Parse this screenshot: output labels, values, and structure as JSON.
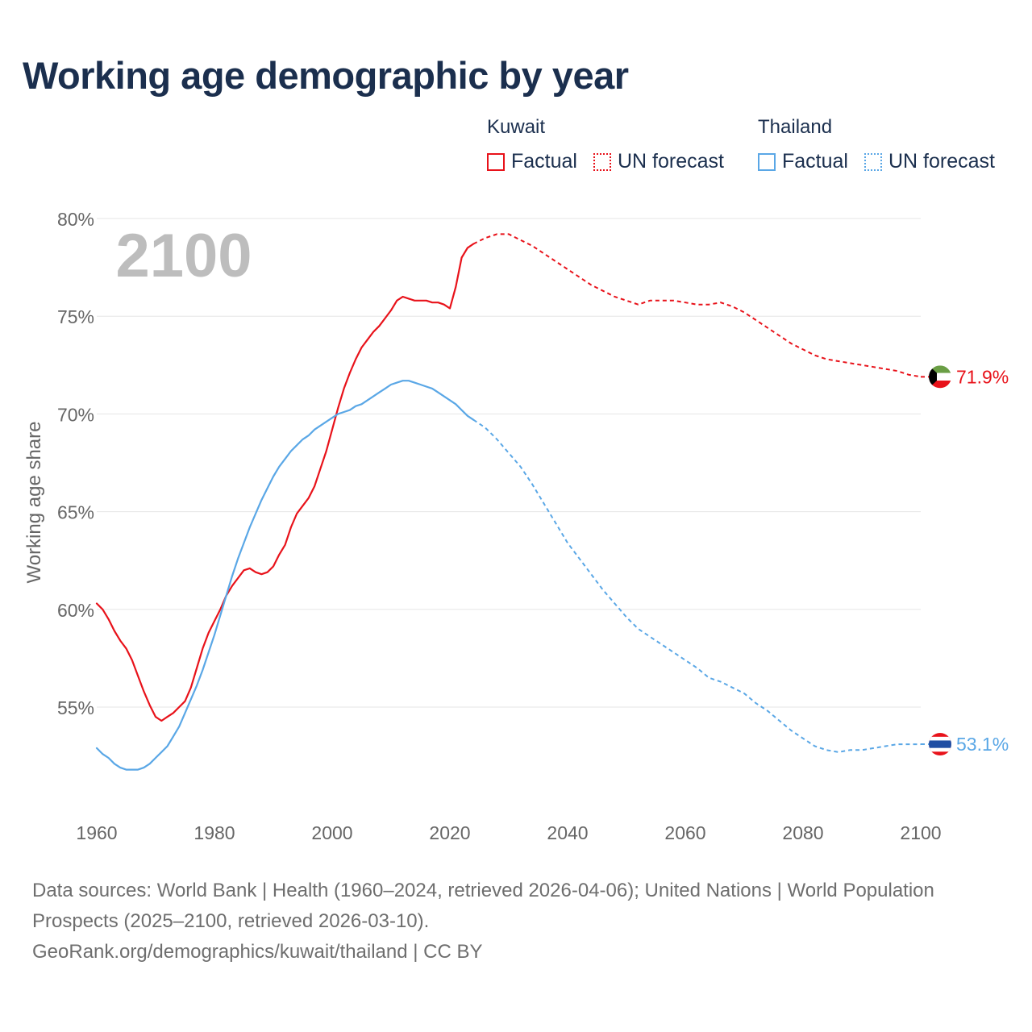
{
  "title": "Working age demographic by year",
  "legend": {
    "kuwait": {
      "name": "Kuwait",
      "factual": "Factual",
      "forecast": "UN forecast",
      "color": "#e8121a"
    },
    "thailand": {
      "name": "Thailand",
      "factual": "Factual",
      "forecast": "UN forecast",
      "color": "#5aa7e6"
    }
  },
  "year_label": "2100",
  "footer": {
    "line1": "Data sources: World Bank | Health (1960–2024, retrieved 2026-04-06); United Nations | World Population Prospects (2025–2100, retrieved 2026-03-10).",
    "line2": "GeoRank.org/demographics/kuwait/thailand | CC BY"
  },
  "chart_data": {
    "type": "line",
    "title": "Working age demographic by year",
    "xlabel": "",
    "ylabel": "Working age share",
    "xlim": [
      1960,
      2103
    ],
    "ylim": [
      50.5,
      80
    ],
    "x_ticks": [
      1960,
      1980,
      2000,
      2020,
      2040,
      2060,
      2080,
      2100
    ],
    "y_ticks": [
      55,
      60,
      65,
      70,
      75,
      80
    ],
    "y_tick_labels": [
      "55%",
      "60%",
      "65%",
      "70%",
      "75%",
      "80%"
    ],
    "forecast_start_year": 2024,
    "series": [
      {
        "name": "Kuwait",
        "color": "#e8121a",
        "end_label": "71.9%",
        "points": [
          [
            1960,
            60.3
          ],
          [
            1961,
            60.0
          ],
          [
            1962,
            59.5
          ],
          [
            1963,
            58.9
          ],
          [
            1964,
            58.4
          ],
          [
            1965,
            58.0
          ],
          [
            1966,
            57.4
          ],
          [
            1967,
            56.6
          ],
          [
            1968,
            55.8
          ],
          [
            1969,
            55.1
          ],
          [
            1970,
            54.5
          ],
          [
            1971,
            54.3
          ],
          [
            1972,
            54.5
          ],
          [
            1973,
            54.7
          ],
          [
            1974,
            55.0
          ],
          [
            1975,
            55.3
          ],
          [
            1976,
            56.0
          ],
          [
            1977,
            57.0
          ],
          [
            1978,
            58.0
          ],
          [
            1979,
            58.8
          ],
          [
            1980,
            59.4
          ],
          [
            1981,
            60.0
          ],
          [
            1982,
            60.7
          ],
          [
            1983,
            61.2
          ],
          [
            1984,
            61.6
          ],
          [
            1985,
            62.0
          ],
          [
            1986,
            62.1
          ],
          [
            1987,
            61.9
          ],
          [
            1988,
            61.8
          ],
          [
            1989,
            61.9
          ],
          [
            1990,
            62.2
          ],
          [
            1991,
            62.8
          ],
          [
            1992,
            63.3
          ],
          [
            1993,
            64.2
          ],
          [
            1994,
            64.9
          ],
          [
            1995,
            65.3
          ],
          [
            1996,
            65.7
          ],
          [
            1997,
            66.3
          ],
          [
            1998,
            67.2
          ],
          [
            1999,
            68.1
          ],
          [
            2000,
            69.2
          ],
          [
            2001,
            70.3
          ],
          [
            2002,
            71.3
          ],
          [
            2003,
            72.1
          ],
          [
            2004,
            72.8
          ],
          [
            2005,
            73.4
          ],
          [
            2006,
            73.8
          ],
          [
            2007,
            74.2
          ],
          [
            2008,
            74.5
          ],
          [
            2009,
            74.9
          ],
          [
            2010,
            75.3
          ],
          [
            2011,
            75.8
          ],
          [
            2012,
            76.0
          ],
          [
            2013,
            75.9
          ],
          [
            2014,
            75.8
          ],
          [
            2015,
            75.8
          ],
          [
            2016,
            75.8
          ],
          [
            2017,
            75.7
          ],
          [
            2018,
            75.7
          ],
          [
            2019,
            75.6
          ],
          [
            2020,
            75.4
          ],
          [
            2021,
            76.5
          ],
          [
            2022,
            78.0
          ],
          [
            2023,
            78.5
          ],
          [
            2024,
            78.7
          ],
          [
            2026,
            79.0
          ],
          [
            2028,
            79.2
          ],
          [
            2030,
            79.2
          ],
          [
            2032,
            78.9
          ],
          [
            2034,
            78.6
          ],
          [
            2036,
            78.2
          ],
          [
            2038,
            77.8
          ],
          [
            2040,
            77.4
          ],
          [
            2042,
            77.0
          ],
          [
            2044,
            76.6
          ],
          [
            2046,
            76.3
          ],
          [
            2048,
            76.0
          ],
          [
            2050,
            75.8
          ],
          [
            2052,
            75.6
          ],
          [
            2054,
            75.8
          ],
          [
            2056,
            75.8
          ],
          [
            2058,
            75.8
          ],
          [
            2060,
            75.7
          ],
          [
            2062,
            75.6
          ],
          [
            2064,
            75.6
          ],
          [
            2066,
            75.7
          ],
          [
            2068,
            75.5
          ],
          [
            2070,
            75.2
          ],
          [
            2072,
            74.8
          ],
          [
            2074,
            74.4
          ],
          [
            2076,
            74.0
          ],
          [
            2078,
            73.6
          ],
          [
            2080,
            73.3
          ],
          [
            2082,
            73.0
          ],
          [
            2084,
            72.8
          ],
          [
            2086,
            72.7
          ],
          [
            2088,
            72.6
          ],
          [
            2090,
            72.5
          ],
          [
            2092,
            72.4
          ],
          [
            2094,
            72.3
          ],
          [
            2096,
            72.2
          ],
          [
            2098,
            72.0
          ],
          [
            2100,
            71.9
          ]
        ]
      },
      {
        "name": "Thailand",
        "color": "#5aa7e6",
        "end_label": "53.1%",
        "points": [
          [
            1960,
            52.9
          ],
          [
            1961,
            52.6
          ],
          [
            1962,
            52.4
          ],
          [
            1963,
            52.1
          ],
          [
            1964,
            51.9
          ],
          [
            1965,
            51.8
          ],
          [
            1966,
            51.8
          ],
          [
            1967,
            51.8
          ],
          [
            1968,
            51.9
          ],
          [
            1969,
            52.1
          ],
          [
            1970,
            52.4
          ],
          [
            1971,
            52.7
          ],
          [
            1972,
            53.0
          ],
          [
            1973,
            53.5
          ],
          [
            1974,
            54.0
          ],
          [
            1975,
            54.7
          ],
          [
            1976,
            55.4
          ],
          [
            1977,
            56.1
          ],
          [
            1978,
            56.9
          ],
          [
            1979,
            57.8
          ],
          [
            1980,
            58.7
          ],
          [
            1981,
            59.7
          ],
          [
            1982,
            60.7
          ],
          [
            1983,
            61.7
          ],
          [
            1984,
            62.6
          ],
          [
            1985,
            63.4
          ],
          [
            1986,
            64.2
          ],
          [
            1987,
            64.9
          ],
          [
            1988,
            65.6
          ],
          [
            1989,
            66.2
          ],
          [
            1990,
            66.8
          ],
          [
            1991,
            67.3
          ],
          [
            1992,
            67.7
          ],
          [
            1993,
            68.1
          ],
          [
            1994,
            68.4
          ],
          [
            1995,
            68.7
          ],
          [
            1996,
            68.9
          ],
          [
            1997,
            69.2
          ],
          [
            1998,
            69.4
          ],
          [
            1999,
            69.6
          ],
          [
            2000,
            69.8
          ],
          [
            2001,
            70.0
          ],
          [
            2002,
            70.1
          ],
          [
            2003,
            70.2
          ],
          [
            2004,
            70.4
          ],
          [
            2005,
            70.5
          ],
          [
            2006,
            70.7
          ],
          [
            2007,
            70.9
          ],
          [
            2008,
            71.1
          ],
          [
            2009,
            71.3
          ],
          [
            2010,
            71.5
          ],
          [
            2011,
            71.6
          ],
          [
            2012,
            71.7
          ],
          [
            2013,
            71.7
          ],
          [
            2014,
            71.6
          ],
          [
            2015,
            71.5
          ],
          [
            2016,
            71.4
          ],
          [
            2017,
            71.3
          ],
          [
            2018,
            71.1
          ],
          [
            2019,
            70.9
          ],
          [
            2020,
            70.7
          ],
          [
            2021,
            70.5
          ],
          [
            2022,
            70.2
          ],
          [
            2023,
            69.9
          ],
          [
            2024,
            69.7
          ],
          [
            2026,
            69.3
          ],
          [
            2028,
            68.7
          ],
          [
            2030,
            68.0
          ],
          [
            2032,
            67.3
          ],
          [
            2034,
            66.4
          ],
          [
            2036,
            65.4
          ],
          [
            2038,
            64.4
          ],
          [
            2040,
            63.4
          ],
          [
            2042,
            62.6
          ],
          [
            2044,
            61.8
          ],
          [
            2046,
            61.0
          ],
          [
            2048,
            60.3
          ],
          [
            2050,
            59.6
          ],
          [
            2052,
            59.0
          ],
          [
            2054,
            58.6
          ],
          [
            2056,
            58.2
          ],
          [
            2058,
            57.8
          ],
          [
            2060,
            57.4
          ],
          [
            2062,
            57.0
          ],
          [
            2064,
            56.5
          ],
          [
            2066,
            56.3
          ],
          [
            2068,
            56.0
          ],
          [
            2070,
            55.7
          ],
          [
            2072,
            55.2
          ],
          [
            2074,
            54.8
          ],
          [
            2076,
            54.3
          ],
          [
            2078,
            53.8
          ],
          [
            2080,
            53.4
          ],
          [
            2082,
            53.0
          ],
          [
            2084,
            52.8
          ],
          [
            2086,
            52.7
          ],
          [
            2088,
            52.8
          ],
          [
            2090,
            52.8
          ],
          [
            2092,
            52.9
          ],
          [
            2094,
            53.0
          ],
          [
            2096,
            53.1
          ],
          [
            2098,
            53.1
          ],
          [
            2100,
            53.1
          ]
        ]
      }
    ]
  }
}
